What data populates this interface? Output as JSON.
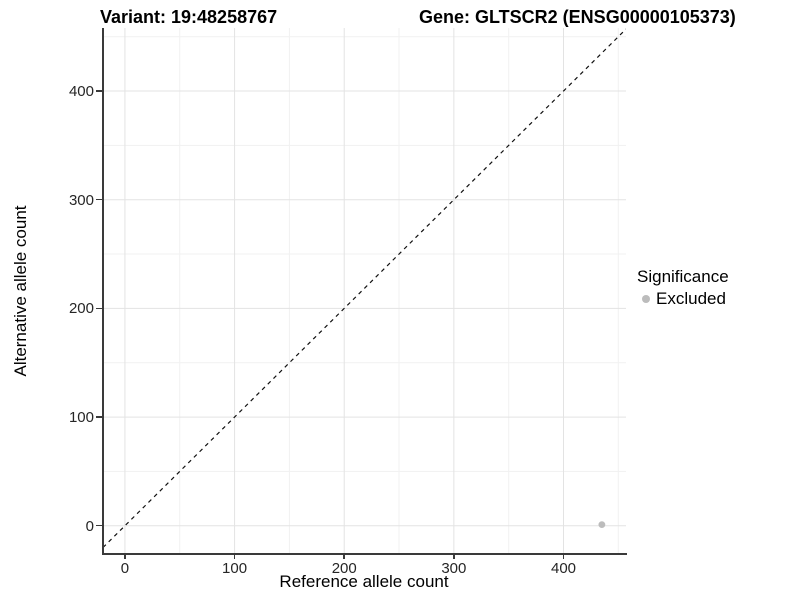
{
  "colors": {
    "point": "#bcbcbc",
    "grid_major": "#e3e3e3",
    "grid_minor": "#f1f1f1",
    "axis_line": "#3a3a3a",
    "dashed_line": "#111111",
    "text": "#000000"
  },
  "chart_data": {
    "type": "scatter",
    "title_left": "Variant: 19:48258767",
    "title_right": "Gene: GLTSCR2 (ENSG00000105373)",
    "xlabel": "Reference allele count",
    "ylabel": "Alternative allele count",
    "xlim": [
      -20,
      457
    ],
    "ylim": [
      -26,
      458
    ],
    "xticks": [
      0,
      100,
      200,
      300,
      400
    ],
    "yticks": [
      0,
      100,
      200,
      300,
      400
    ],
    "minor_gridline_step": 50,
    "grid": "major+minor",
    "reference_line": {
      "type": "identity",
      "slope": 1,
      "intercept": 0,
      "style": "dashed",
      "color": "#111111"
    },
    "series": [
      {
        "name": "Excluded",
        "color": "#bcbcbc",
        "points": [
          [
            435,
            1
          ]
        ]
      }
    ],
    "legend": {
      "title": "Significance",
      "position": "right",
      "entries": [
        {
          "label": "Excluded",
          "color": "#bcbcbc",
          "marker": "circle"
        }
      ]
    }
  }
}
